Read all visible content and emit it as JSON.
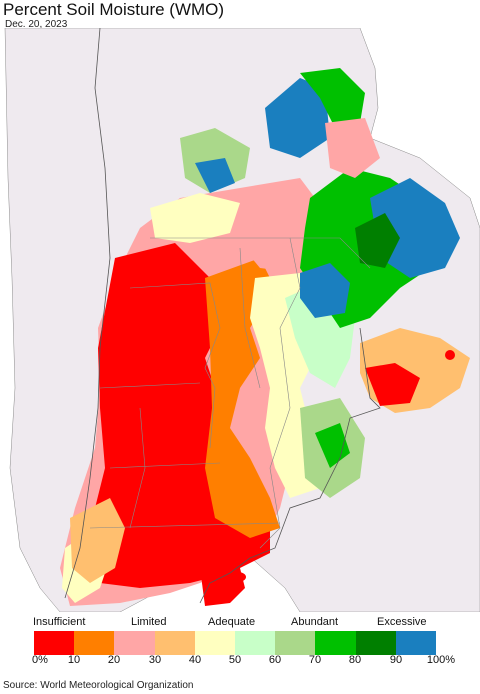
{
  "title": "Percent Soil Moisture (WMO)",
  "date": "Dec. 20, 2023",
  "legend": {
    "categories": [
      "Insufficient",
      "Limited",
      "Adequate",
      "Abundant",
      "Excessive"
    ],
    "ticks": [
      "0%",
      "10",
      "20",
      "30",
      "40",
      "50",
      "60",
      "70",
      "80",
      "90",
      "100%"
    ],
    "colors": [
      "#ff0000",
      "#ff7f00",
      "#ffa6a6",
      "#ffbf6f",
      "#ffffc0",
      "#c8ffc8",
      "#aad88a",
      "#00c000",
      "#007f00",
      "#1a7fbf"
    ]
  },
  "source": "Source: World Meteorological Organization"
}
